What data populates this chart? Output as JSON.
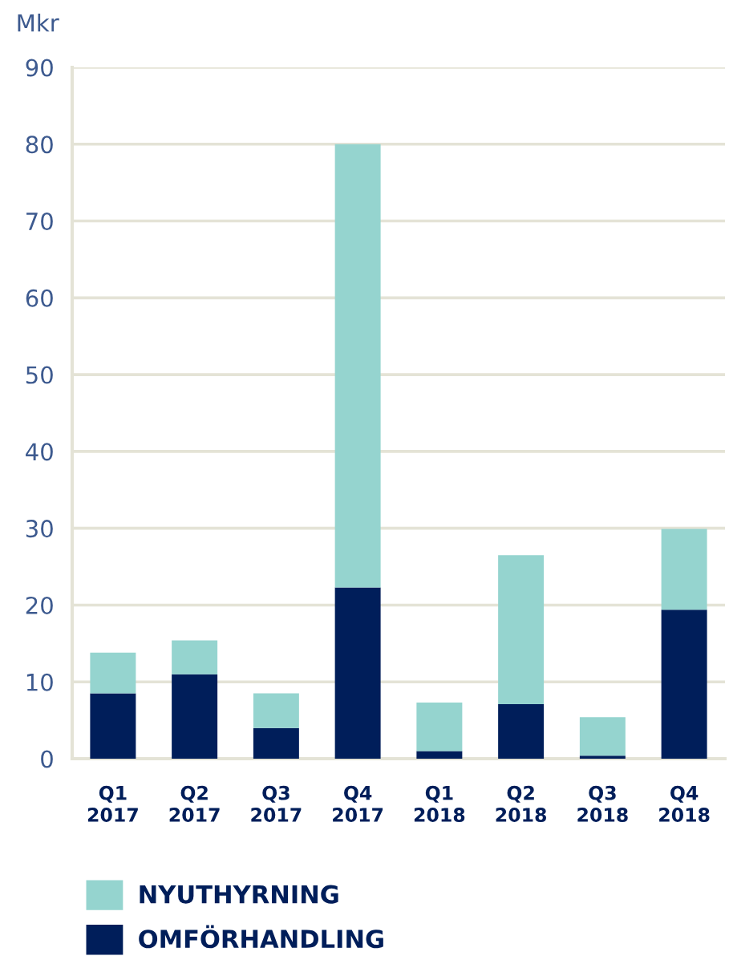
{
  "chart_data": {
    "type": "bar",
    "stacked": true,
    "ylabel": "Mkr",
    "categories": [
      "Q1\n2017",
      "Q2\n2017",
      "Q3\n2017",
      "Q4\n2017",
      "Q1\n2018",
      "Q2\n2018",
      "Q3\n2018",
      "Q4\n2018"
    ],
    "series": [
      {
        "name": "OMFÖRHANDLING",
        "color": "#001e5a",
        "values": [
          8.5,
          11.0,
          4.0,
          22.3,
          1.0,
          7.1,
          0.4,
          19.4
        ]
      },
      {
        "name": "NYUTHYRNING",
        "color": "#95d4cf",
        "values": [
          5.3,
          4.4,
          4.5,
          57.7,
          6.3,
          19.4,
          5.0,
          10.5
        ]
      }
    ],
    "ylim": [
      0,
      90
    ],
    "yticks": [
      0,
      10,
      20,
      30,
      40,
      50,
      60,
      70,
      80,
      90
    ],
    "grid": "y",
    "legend": "bottom"
  }
}
